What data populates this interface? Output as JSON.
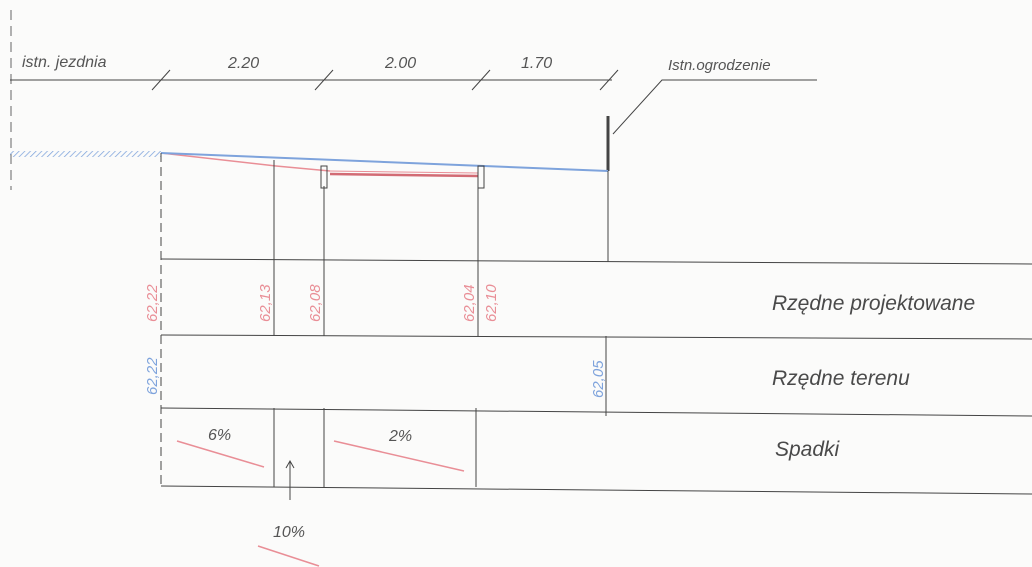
{
  "dimensions": {
    "existing_road": "istn. jezdnia",
    "d1": "2.20",
    "d2": "2.00",
    "d3": "1.70",
    "fence": "Istn.ogrodzenie"
  },
  "rows": {
    "design": "Rzędne projektowane",
    "terrain": "Rzędne terenu",
    "slopes": "Spadki"
  },
  "design_elevations": [
    "62,22",
    "62,13",
    "62,08",
    "62,04",
    "62,10"
  ],
  "terrain_elevations": [
    "62,22",
    "62,05"
  ],
  "slopes": [
    "6%",
    "2%",
    "10%"
  ],
  "colors": {
    "design": "#e98e96",
    "terrain": "#7ea3dc",
    "lines": "#444444"
  }
}
